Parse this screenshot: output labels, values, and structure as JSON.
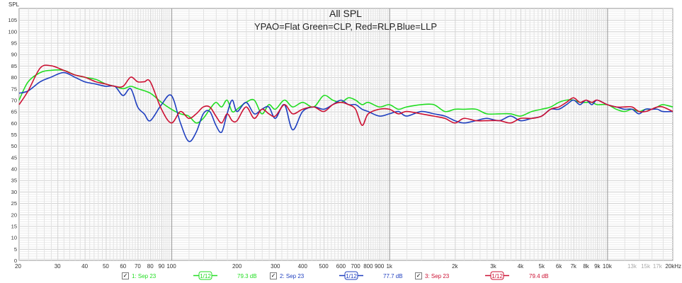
{
  "chart_data": {
    "type": "line",
    "title": "All SPL",
    "subtitle": "YPAO=Flat Green=CLP, Red=RLP,Blue=LLP",
    "ylabel": "SPL",
    "xlabel": "",
    "x_scale": "log",
    "xlim": [
      20,
      20000
    ],
    "ylim": [
      0,
      110
    ],
    "grid": true,
    "x_ticks": [
      20,
      30,
      40,
      50,
      60,
      70,
      80,
      90,
      100,
      200,
      300,
      400,
      500,
      600,
      700,
      800,
      900,
      1000,
      2000,
      3000,
      4000,
      5000,
      6000,
      7000,
      8000,
      9000,
      10000,
      13000,
      15000,
      17000,
      20000
    ],
    "x_tick_labels": [
      "20",
      "30",
      "40",
      "50",
      "60",
      "70",
      "80",
      "90",
      "100",
      "200",
      "300",
      "400",
      "500",
      "600",
      "700",
      "800",
      "900",
      "1k",
      "2k",
      "3k",
      "4k",
      "5k",
      "6k",
      "7k",
      "8k",
      "9k",
      "10k",
      "13k",
      "15k",
      "17k",
      "20kHz"
    ],
    "x_ticks_faint": [
      "13k",
      "15k",
      "17k"
    ],
    "y_ticks": [
      0,
      5,
      10,
      15,
      20,
      25,
      30,
      35,
      40,
      45,
      50,
      55,
      60,
      65,
      70,
      75,
      80,
      85,
      90,
      95,
      100,
      105
    ],
    "series": [
      {
        "color": "#22dd22",
        "x": [
          20,
          22,
          25,
          28,
          32,
          36,
          40,
          45,
          50,
          55,
          60,
          65,
          70,
          80,
          90,
          100,
          110,
          120,
          130,
          140,
          150,
          160,
          170,
          180,
          190,
          200,
          220,
          240,
          260,
          280,
          300,
          330,
          360,
          400,
          450,
          500,
          550,
          600,
          650,
          700,
          750,
          800,
          900,
          1000,
          1100,
          1200,
          1400,
          1600,
          1800,
          2000,
          2200,
          2500,
          2800,
          3200,
          3600,
          4000,
          4500,
          5000,
          5500,
          6000,
          6500,
          7000,
          7500,
          8000,
          8500,
          9000,
          10000,
          11000,
          12000,
          13000,
          14000,
          15000,
          16000,
          17000,
          18000,
          20000
        ],
        "y": [
          70,
          78,
          82,
          83,
          83,
          81,
          80,
          79,
          77,
          76,
          75,
          76,
          75,
          73,
          69,
          66,
          64,
          63,
          60,
          62,
          66,
          69,
          67,
          70,
          65,
          66,
          69,
          70,
          64,
          68,
          66,
          70,
          67,
          69,
          67,
          72,
          70,
          69,
          71,
          70,
          68,
          69,
          67,
          68,
          66,
          67,
          68,
          68,
          65,
          66,
          66,
          66,
          64,
          64,
          64,
          63,
          65,
          66,
          67,
          69,
          70,
          70,
          69,
          69,
          69,
          68,
          68,
          66,
          65,
          66,
          65,
          66,
          66,
          67,
          68,
          67
        ]
      },
      {
        "color": "#1f3fbf",
        "x": [
          20,
          22,
          25,
          28,
          32,
          36,
          40,
          45,
          50,
          55,
          60,
          65,
          70,
          75,
          80,
          90,
          100,
          110,
          120,
          130,
          140,
          150,
          160,
          170,
          180,
          190,
          200,
          220,
          240,
          260,
          280,
          300,
          330,
          360,
          400,
          450,
          500,
          550,
          600,
          650,
          700,
          750,
          800,
          900,
          1000,
          1100,
          1200,
          1400,
          1600,
          1800,
          2000,
          2200,
          2500,
          2800,
          3200,
          3600,
          4000,
          4500,
          5000,
          5500,
          6000,
          6500,
          7000,
          7500,
          8000,
          8500,
          9000,
          10000,
          11000,
          12000,
          13000,
          14000,
          15000,
          16000,
          17000,
          18000,
          20000
        ],
        "y": [
          73,
          74,
          78,
          80,
          82,
          80,
          78,
          77,
          76,
          76,
          72,
          75,
          67,
          64,
          61,
          68,
          72,
          60,
          52,
          56,
          64,
          65,
          59,
          56,
          64,
          70,
          65,
          69,
          64,
          66,
          67,
          62,
          68,
          57,
          65,
          67,
          66,
          68,
          70,
          68,
          68,
          66,
          65,
          63,
          64,
          65,
          63,
          65,
          64,
          63,
          61,
          60,
          61,
          62,
          61,
          63,
          61,
          62,
          63,
          66,
          66,
          68,
          70,
          68,
          70,
          68,
          70,
          68,
          67,
          66,
          66,
          64,
          66,
          66,
          66,
          65,
          65
        ]
      },
      {
        "color": "#cc1133",
        "x": [
          20,
          22,
          25,
          28,
          32,
          36,
          40,
          45,
          50,
          55,
          60,
          65,
          70,
          75,
          80,
          90,
          100,
          110,
          120,
          130,
          140,
          150,
          160,
          170,
          180,
          190,
          200,
          220,
          240,
          260,
          280,
          300,
          330,
          360,
          400,
          450,
          500,
          550,
          600,
          650,
          700,
          750,
          800,
          900,
          1000,
          1100,
          1200,
          1400,
          1600,
          1800,
          2000,
          2200,
          2500,
          2800,
          3200,
          3600,
          4000,
          4500,
          5000,
          5500,
          6000,
          6500,
          7000,
          7500,
          8000,
          8500,
          9000,
          10000,
          11000,
          12000,
          13000,
          14000,
          15000,
          16000,
          17000,
          18000,
          20000
        ],
        "y": [
          68,
          74,
          84,
          85,
          83,
          81,
          80,
          78,
          77,
          76,
          76,
          80,
          78,
          78,
          78,
          66,
          60,
          65,
          62,
          64,
          67,
          67,
          63,
          60,
          64,
          61,
          61,
          67,
          62,
          66,
          64,
          63,
          68,
          64,
          66,
          67,
          65,
          68,
          69,
          68,
          66,
          59,
          64,
          66,
          66,
          64,
          65,
          64,
          63,
          62,
          60,
          62,
          61,
          61,
          61,
          60,
          62,
          62,
          63,
          66,
          67,
          69,
          71,
          69,
          70,
          69,
          70,
          68,
          67,
          67,
          67,
          65,
          65,
          66,
          67,
          67,
          65
        ]
      }
    ]
  },
  "legend": [
    {
      "label": "1: Sep 23",
      "checked": "✓",
      "smoothing": "1/12",
      "value": "79.3 dB",
      "color": "#22dd22"
    },
    {
      "label": "2: Sep 23",
      "checked": "✓",
      "smoothing": "1/12",
      "value": "77.7 dB",
      "color": "#1f3fbf"
    },
    {
      "label": "3: Sep 23",
      "checked": "✓",
      "smoothing": "1/12",
      "value": "79.4 dB",
      "color": "#cc1133"
    }
  ],
  "colors": {
    "grid_major": "#9a9a9a",
    "grid_minor": "#e2e2e2",
    "axis_text": "#333333"
  }
}
